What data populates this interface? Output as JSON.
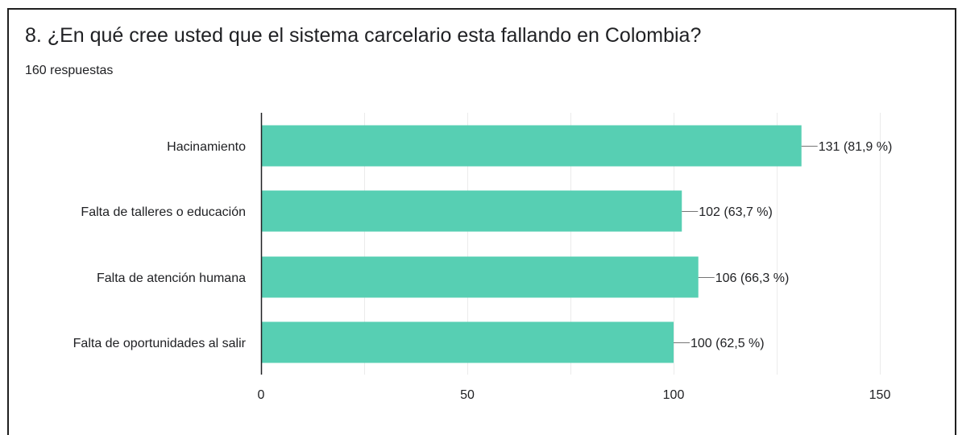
{
  "question": {
    "title": "8. ¿En qué cree usted que el sistema carcelario esta fallando en Colombia?",
    "responses": "160 respuestas"
  },
  "colors": {
    "bar": "#57cfb3",
    "grid": "#ebebeb",
    "axis": "#202124",
    "leader": "#757575"
  },
  "chart_data": {
    "type": "bar",
    "orientation": "horizontal",
    "categories": [
      "Hacinamiento",
      "Falta de talleres o educación",
      "Falta de atención humana",
      "Falta de oportunidades al salir"
    ],
    "values": [
      131,
      102,
      106,
      100
    ],
    "data_labels": [
      "131 (81,9 %)",
      "102 (63,7 %)",
      "106 (66,3 %)",
      "100 (62,5 %)"
    ],
    "xlim": [
      0,
      150
    ],
    "xticks": [
      0,
      50,
      100,
      150
    ],
    "xtick_labels": [
      "0",
      "50",
      "100",
      "150"
    ],
    "grid": true
  }
}
